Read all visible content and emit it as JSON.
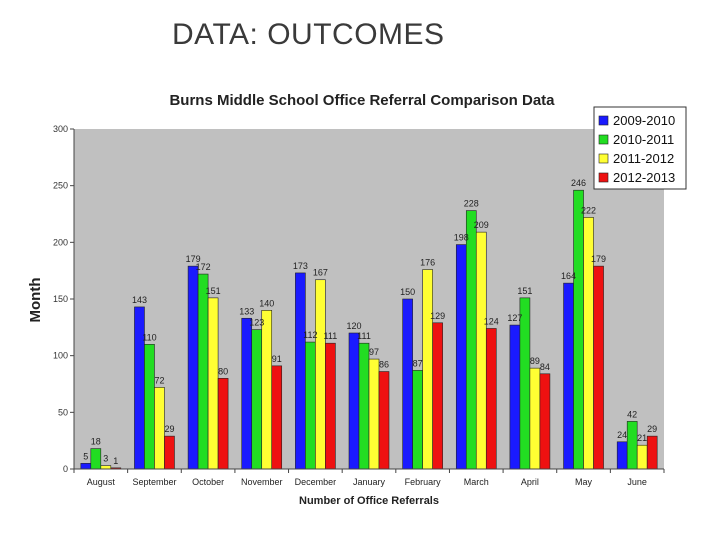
{
  "slide": {
    "title": "DATA:  OUTCOMES"
  },
  "chart_data": {
    "type": "bar",
    "title": "Burns Middle School Office Referral Comparison Data",
    "xlabel": "Number of Office Referrals",
    "ylabel": "Month",
    "ylim": [
      0,
      300
    ],
    "yticks": [
      0,
      50,
      100,
      150,
      200,
      250,
      300
    ],
    "grid": false,
    "legend_position": "top-right",
    "plot_background": "#c0c0c0",
    "categories": [
      "August",
      "September",
      "October",
      "November",
      "December",
      "January",
      "February",
      "March",
      "April",
      "May",
      "June"
    ],
    "series": [
      {
        "name": "2009-2010",
        "color": "#1a1aff",
        "values": [
          5,
          143,
          179,
          133,
          173,
          120,
          150,
          198,
          127,
          164,
          24
        ]
      },
      {
        "name": "2010-2011",
        "color": "#22dd22",
        "values": [
          18,
          110,
          172,
          123,
          112,
          111,
          87,
          228,
          151,
          246,
          42
        ]
      },
      {
        "name": "2011-2012",
        "color": "#ffff33",
        "values": [
          3,
          72,
          151,
          140,
          167,
          97,
          176,
          209,
          89,
          222,
          21
        ]
      },
      {
        "name": "2012-2013",
        "color": "#ee1111",
        "values": [
          1,
          29,
          80,
          91,
          111,
          86,
          129,
          124,
          84,
          179,
          29
        ]
      }
    ]
  }
}
